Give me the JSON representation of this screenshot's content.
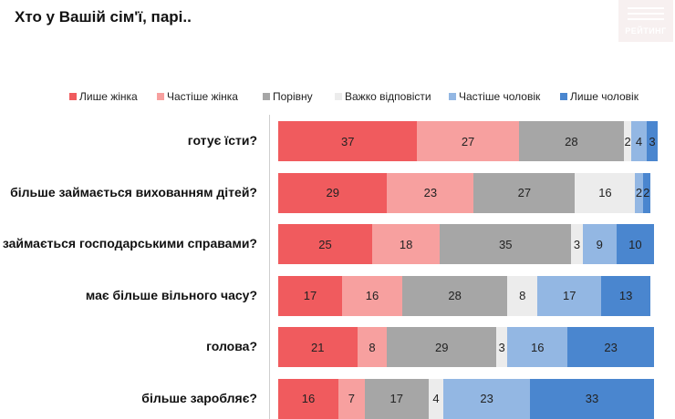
{
  "title": "Хто у Вашій сім'ї, парі..",
  "logo": {
    "text": "РЕЙТИНГ",
    "color": "#f7f0f0"
  },
  "chart_data": {
    "type": "bar",
    "orientation": "horizontal",
    "stacked": true,
    "title": "",
    "xlabel": "",
    "ylabel": "",
    "xlim": [
      0,
      100
    ],
    "legend_position": "top",
    "grid": false,
    "categories": [
      "готує їсти?",
      "більше займається вихованням дітей?",
      "займається господарськими справами?",
      "має більше вільного часу?",
      "голова?",
      "більше заробляє?"
    ],
    "series": [
      {
        "name": "Лише жінка",
        "color": "#f05b5e",
        "values": [
          37,
          29,
          25,
          17,
          21,
          16
        ]
      },
      {
        "name": "Частіше  жінка",
        "color": "#f7a09f",
        "values": [
          27,
          23,
          18,
          16,
          8,
          7
        ]
      },
      {
        "name": "Порівну",
        "color": "#a6a6a6",
        "values": [
          28,
          27,
          35,
          28,
          29,
          17
        ]
      },
      {
        "name": "Важко відповісти",
        "color": "#ececec",
        "values": [
          2,
          16,
          3,
          8,
          3,
          4
        ]
      },
      {
        "name": "Частіше  чоловік",
        "color": "#93b7e3",
        "values": [
          4,
          2,
          9,
          17,
          16,
          23
        ]
      },
      {
        "name": "Лише чоловік",
        "color": "#4a86cf",
        "values": [
          3,
          2,
          10,
          13,
          23,
          33
        ]
      }
    ]
  }
}
